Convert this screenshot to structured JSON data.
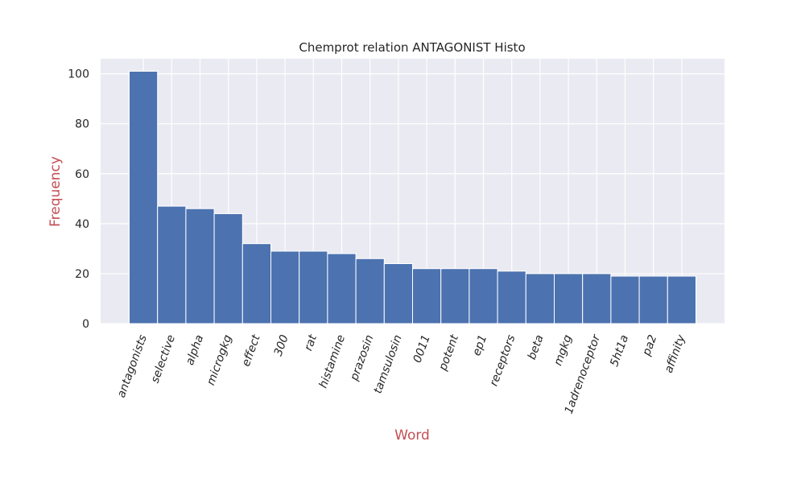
{
  "chart_data": {
    "type": "bar",
    "title": "Chemprot relation ANTAGONIST Histo",
    "xlabel": "Word",
    "ylabel": "Frequency",
    "ylim": [
      0,
      106
    ],
    "yticks": [
      0,
      20,
      40,
      60,
      80,
      100
    ],
    "grid": true,
    "categories": [
      "antagonists",
      "selective",
      "alpha",
      "microgkg",
      "effect",
      "300",
      "rat",
      "histamine",
      "prazosin",
      "tamsulosin",
      "0011",
      "potent",
      "ep1",
      "receptors",
      "beta",
      "mgkg",
      "1adrenoceptor",
      "5ht1a",
      "pa2",
      "affinity"
    ],
    "values": [
      101,
      47,
      46,
      44,
      32,
      29,
      29,
      28,
      26,
      24,
      22,
      22,
      22,
      21,
      20,
      20,
      20,
      19,
      19,
      19
    ]
  },
  "colors": {
    "bar": "#4c72b0",
    "plot_background": "#eaeaf2",
    "grid": "#ffffff",
    "axis_label": "#c44e52",
    "text": "#262626"
  }
}
